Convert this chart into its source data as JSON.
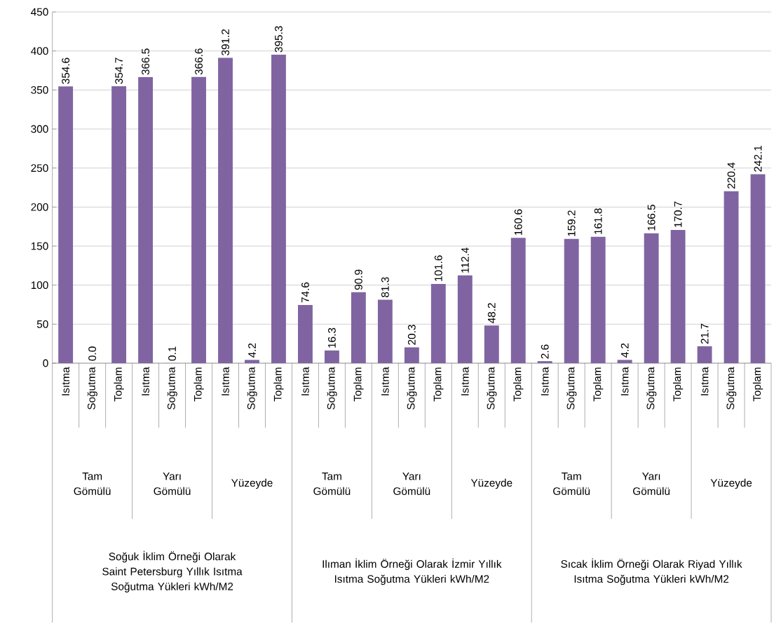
{
  "chart_data": {
    "type": "bar",
    "categories": [
      "Isıtma",
      "Soğutma",
      "Toplam",
      "Isıtma",
      "Soğutma",
      "Toplam",
      "Isıtma",
      "Soğutma",
      "Toplam",
      "Isıtma",
      "Soğutma",
      "Toplam",
      "Isıtma",
      "Soğutma",
      "Toplam",
      "Isıtma",
      "Soğutma",
      "Toplam",
      "Isıtma",
      "Soğutma",
      "Toplam",
      "Isıtma",
      "Soğutma",
      "Toplam",
      "Isıtma",
      "Soğutma",
      "Toplam"
    ],
    "values": [
      354.6,
      0.0,
      354.7,
      366.5,
      0.1,
      366.6,
      391.2,
      4.2,
      395.3,
      74.6,
      16.3,
      90.9,
      81.3,
      20.3,
      101.6,
      112.4,
      48.2,
      160.6,
      2.6,
      159.2,
      161.8,
      4.2,
      166.5,
      170.7,
      21.7,
      220.4,
      242.1
    ],
    "value_labels": [
      "354.6",
      "0.0",
      "354.7",
      "366.5",
      "0.1",
      "366.6",
      "391.2",
      "4.2",
      "395.3",
      "74.6",
      "16.3",
      "90.9",
      "81.3",
      "20.3",
      "101.6",
      "112.4",
      "48.2",
      "160.6",
      "2.6",
      "159.2",
      "161.8",
      "4.2",
      "166.5",
      "170.7",
      "21.7",
      "220.4",
      "242.1"
    ],
    "color": "#8064a2",
    "ylim": [
      0,
      450
    ],
    "yticks": [
      0,
      50,
      100,
      150,
      200,
      250,
      300,
      350,
      400,
      450
    ],
    "grid": "y",
    "annotations": [
      "Tam Gömülü",
      "Yarı Gömülü",
      "Yüzeyde",
      "Tam Gömülü",
      "Yarı Gömülü",
      "Yüzeyde",
      "Tam Gömülü",
      "Yarı Gömülü",
      "Yüzeyde",
      "Soğuk İklim Örneği Olarak Saint Petersburg  Yıllık Isıtma Soğutma Yükleri kWh/M2",
      "Ilıman İklim Örneği Olarak İzmir Yıllık Isıtma Soğutma Yükleri kWh/M2",
      "Sıcak İklim Örneği Olarak Riyad Yıllık Isıtma Soğutma Yükleri kWh/M2"
    ]
  }
}
